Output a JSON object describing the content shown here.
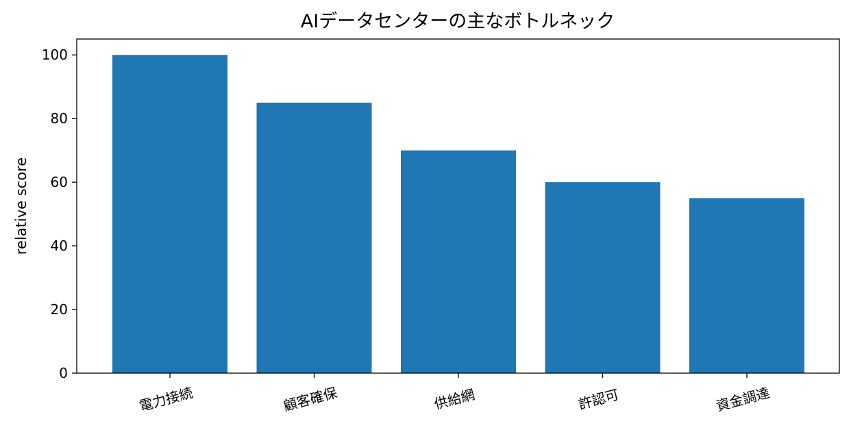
{
  "chart_data": {
    "type": "bar",
    "title": "AIデータセンターの主なボトルネック",
    "xlabel": "",
    "ylabel": "relative score",
    "categories": [
      "電力接続",
      "顧客確保",
      "供給網",
      "許認可",
      "資金調達"
    ],
    "values": [
      100,
      85,
      70,
      60,
      55
    ],
    "ylim": [
      0,
      105
    ],
    "yticks": [
      0,
      20,
      40,
      60,
      80,
      100
    ],
    "bar_color": "#1f77b4",
    "grid": false,
    "xtick_rotation_deg": -15
  }
}
